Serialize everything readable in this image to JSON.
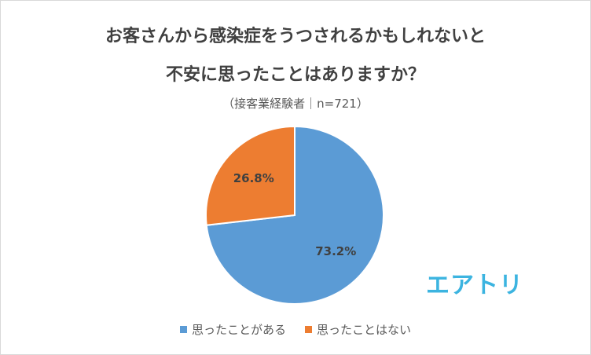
{
  "title_line1": "お客さんから感染症をうつされるかもしれないと",
  "title_line2": "不安に思ったことはありますか？",
  "subtitle": "（接客業経験者｜n=721）",
  "logo_text": "エアトリ",
  "logo_color": "#3cb4e0",
  "chart_data": {
    "type": "pie",
    "title": "お客さんから感染症をうつされるかもしれないと不安に思ったことはありますか？",
    "subtitle": "（接客業経験者｜n=721）",
    "legend_position": "bottom",
    "slices": [
      {
        "label": "思ったことがある",
        "value": 73.2,
        "value_label": "73.2%",
        "color": "#5b9bd5"
      },
      {
        "label": "思ったことはない",
        "value": 26.8,
        "value_label": "26.8%",
        "color": "#ed7d31"
      }
    ]
  }
}
